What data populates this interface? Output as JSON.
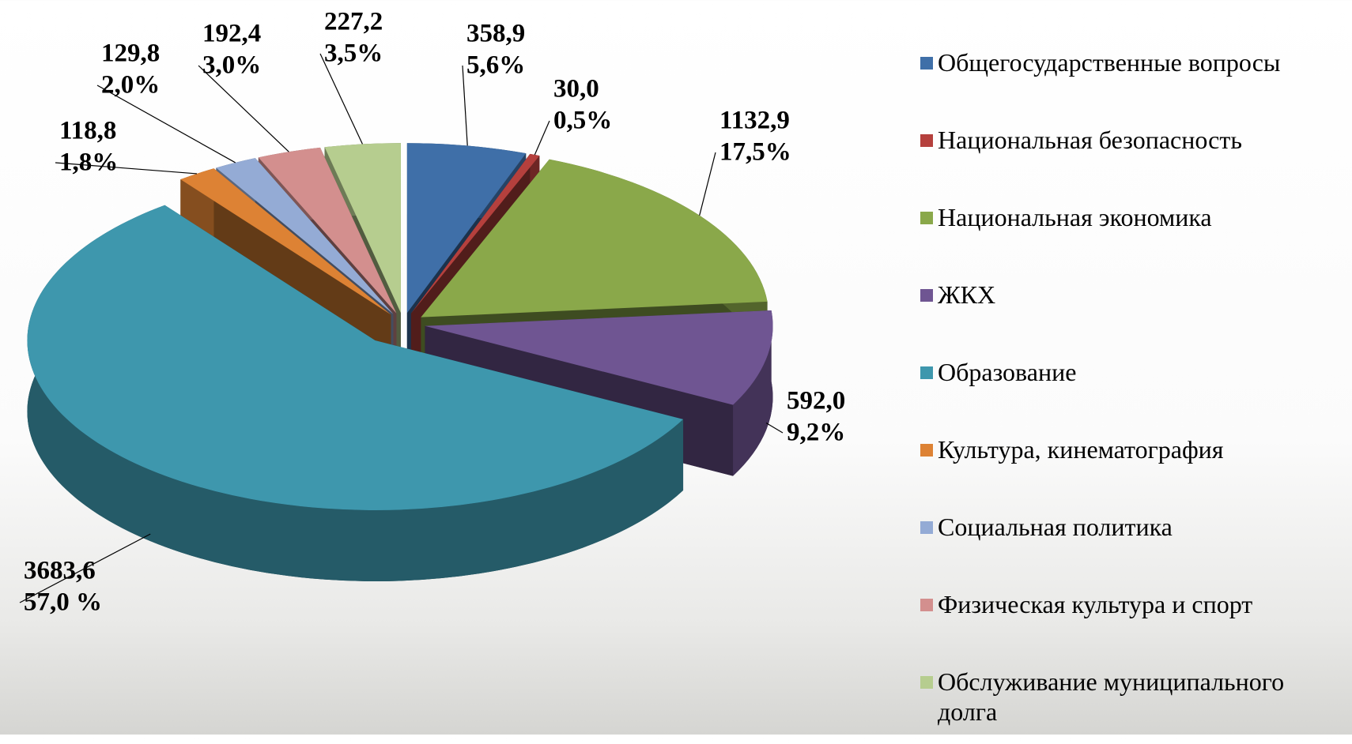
{
  "chart_data": {
    "type": "pie",
    "categories": [
      "Общегосударственные вопросы",
      "Национальная безопасность",
      "Национальная экономика",
      "ЖКХ",
      "Образование",
      "Культура, кинематография",
      "Социальная политика",
      "Физическая культура и спорт",
      "Обслуживание муниципального долга"
    ],
    "values": [
      358.9,
      30.0,
      1132.9,
      592.0,
      3683.6,
      118.8,
      129.8,
      192.4,
      227.2
    ],
    "value_labels": [
      "358,9",
      "30,0",
      "1132,9",
      "592,0",
      "3683,6",
      "118,8",
      "129,8",
      "192,4",
      "227,2"
    ],
    "percents": [
      5.6,
      0.5,
      17.5,
      9.2,
      57.0,
      1.8,
      2.0,
      3.0,
      3.5
    ],
    "percent_labels": [
      "5,6%",
      "0,5%",
      "17,5%",
      "9,2%",
      "57,0 %",
      "1,8%",
      "2,0%",
      "3,0%",
      "3,5%"
    ],
    "colors": [
      "#3f6fa8",
      "#b5403d",
      "#8aa84a",
      "#6f5592",
      "#3e97ad",
      "#dd8234",
      "#94abd5",
      "#d38f8e",
      "#b6cd8f"
    ],
    "legend": "right"
  }
}
